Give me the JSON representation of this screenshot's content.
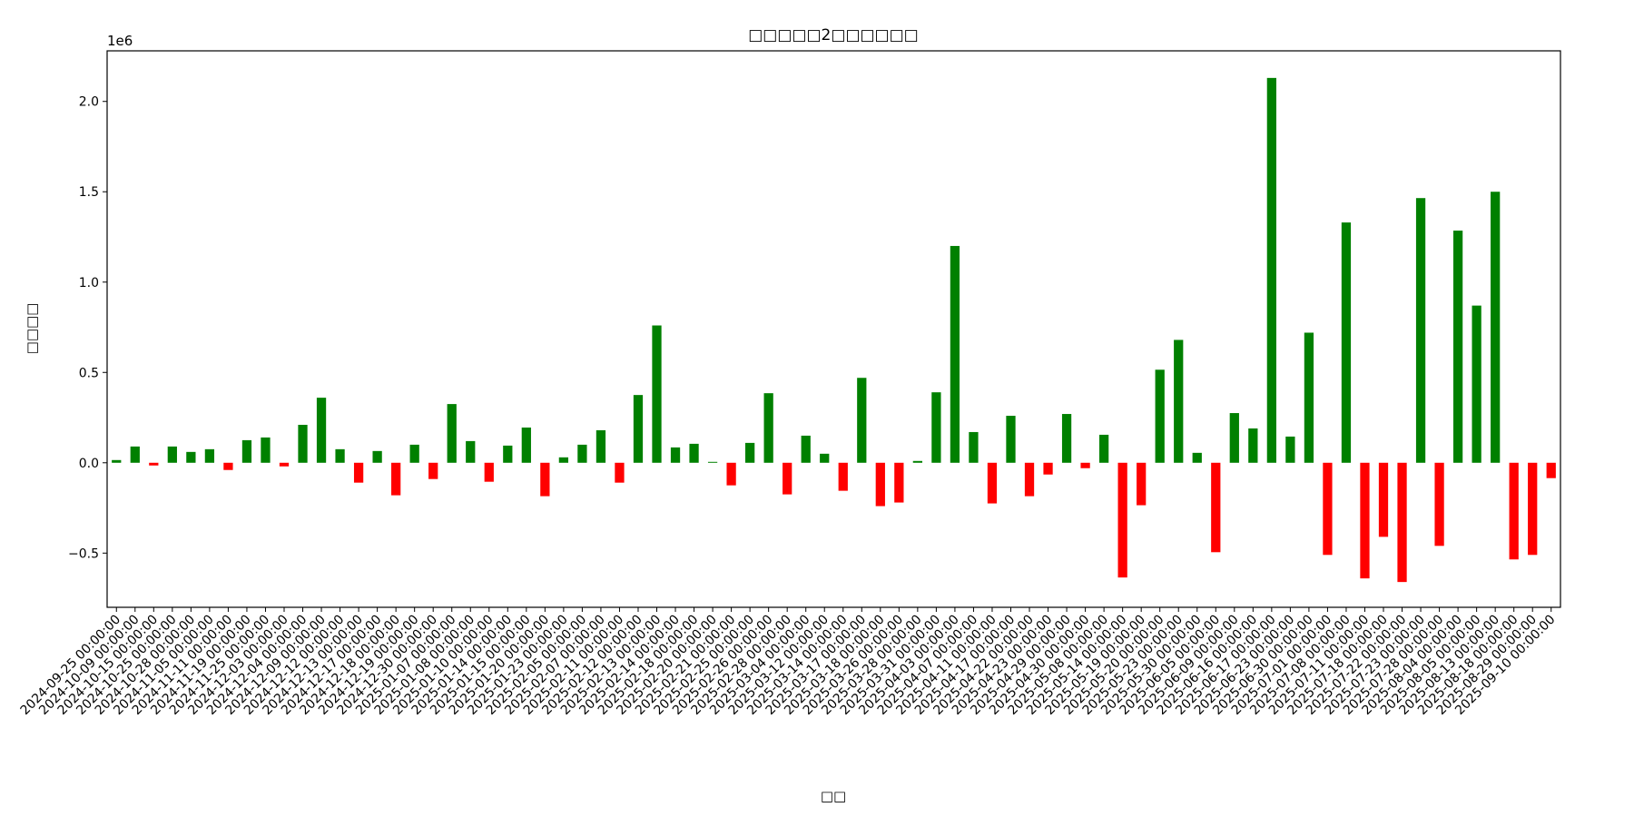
{
  "chart_data": {
    "type": "bar",
    "title": "□□□□□2□□□□□□",
    "xlabel": "□□",
    "ylabel": "□□□□",
    "offset_label": "1e6",
    "categories": [
      "2024-09-25 00:00:00",
      "2024-10-09 00:00:00",
      "2024-10-15 00:00:00",
      "2024-10-25 00:00:00",
      "2024-10-28 00:00:00",
      "2024-11-05 00:00:00",
      "2024-11-11 00:00:00",
      "2024-11-19 00:00:00",
      "2024-11-25 00:00:00",
      "2024-12-03 00:00:00",
      "2024-12-04 00:00:00",
      "2024-12-09 00:00:00",
      "2024-12-12 00:00:00",
      "2024-12-13 00:00:00",
      "2024-12-17 00:00:00",
      "2024-12-18 00:00:00",
      "2024-12-19 00:00:00",
      "2024-12-30 00:00:00",
      "2025-01-07 00:00:00",
      "2025-01-08 00:00:00",
      "2025-01-10 00:00:00",
      "2025-01-14 00:00:00",
      "2025-01-15 00:00:00",
      "2025-01-20 00:00:00",
      "2025-01-23 00:00:00",
      "2025-02-05 00:00:00",
      "2025-02-07 00:00:00",
      "2025-02-11 00:00:00",
      "2025-02-12 00:00:00",
      "2025-02-13 00:00:00",
      "2025-02-14 00:00:00",
      "2025-02-18 00:00:00",
      "2025-02-20 00:00:00",
      "2025-02-21 00:00:00",
      "2025-02-25 00:00:00",
      "2025-02-26 00:00:00",
      "2025-02-28 00:00:00",
      "2025-03-04 00:00:00",
      "2025-03-12 00:00:00",
      "2025-03-14 00:00:00",
      "2025-03-17 00:00:00",
      "2025-03-18 00:00:00",
      "2025-03-26 00:00:00",
      "2025-03-28 00:00:00",
      "2025-03-31 00:00:00",
      "2025-04-03 00:00:00",
      "2025-04-07 00:00:00",
      "2025-04-11 00:00:00",
      "2025-04-17 00:00:00",
      "2025-04-22 00:00:00",
      "2025-04-23 00:00:00",
      "2025-04-29 00:00:00",
      "2025-04-30 00:00:00",
      "2025-05-08 00:00:00",
      "2025-05-14 00:00:00",
      "2025-05-19 00:00:00",
      "2025-05-20 00:00:00",
      "2025-05-23 00:00:00",
      "2025-05-30 00:00:00",
      "2025-06-05 00:00:00",
      "2025-06-09 00:00:00",
      "2025-06-16 00:00:00",
      "2025-06-17 00:00:00",
      "2025-06-23 00:00:00",
      "2025-06-30 00:00:00",
      "2025-07-01 00:00:00",
      "2025-07-08 00:00:00",
      "2025-07-11 00:00:00",
      "2025-07-18 00:00:00",
      "2025-07-22 00:00:00",
      "2025-07-23 00:00:00",
      "2025-07-28 00:00:00",
      "2025-08-04 00:00:00",
      "2025-08-05 00:00:00",
      "2025-08-13 00:00:00",
      "2025-08-18 00:00:00",
      "2025-08-29 00:00:00",
      "2025-09-10 00:00:00"
    ],
    "values": [
      15000,
      90000,
      -15000,
      90000,
      60000,
      75000,
      -40000,
      125000,
      140000,
      -20000,
      210000,
      360000,
      75000,
      -110000,
      65000,
      -180000,
      100000,
      -90000,
      325000,
      120000,
      -105000,
      95000,
      195000,
      -185000,
      30000,
      100000,
      180000,
      -110000,
      375000,
      760000,
      85000,
      105000,
      5000,
      -125000,
      110000,
      385000,
      -175000,
      150000,
      50000,
      -155000,
      470000,
      -240000,
      -220000,
      10000,
      390000,
      1200000,
      170000,
      -225000,
      260000,
      -185000,
      -65000,
      270000,
      -30000,
      155000,
      -635000,
      -235000,
      515000,
      680000,
      55000,
      -495000,
      275000,
      190000,
      2130000,
      145000,
      720000,
      -510000,
      1330000,
      -640000,
      -410000,
      -660000,
      1465000,
      -460000,
      1285000,
      870000,
      1500000,
      -535000,
      -510000,
      -85000
    ],
    "positive_color": "#008000",
    "negative_color": "#ff0000",
    "ylim": [
      -800000,
      2280000
    ],
    "yticks": [
      {
        "value": -500000,
        "label": "−0.5"
      },
      {
        "value": 0,
        "label": "0.0"
      },
      {
        "value": 500000,
        "label": "0.5"
      },
      {
        "value": 1000000,
        "label": "1.0"
      },
      {
        "value": 1500000,
        "label": "1.5"
      },
      {
        "value": 2000000,
        "label": "2.0"
      }
    ],
    "grid": false
  }
}
